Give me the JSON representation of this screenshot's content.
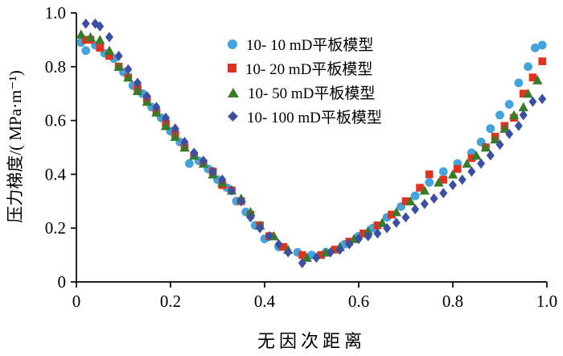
{
  "figure": {
    "background": "#ffffff",
    "axis_color": "#000000"
  },
  "chart_data": {
    "type": "scatter",
    "title": "",
    "xlabel": "无因次距离",
    "ylabel": "压力梯度/( MPa·m⁻¹)",
    "xlim": [
      0,
      1.0
    ],
    "ylim": [
      0,
      1.0
    ],
    "grid": false,
    "legend_position": "inside upper center",
    "xticks": {
      "values": [
        0,
        0.2,
        0.4,
        0.6,
        0.8,
        1.0
      ],
      "labels": [
        "0",
        "0.2",
        "0.4",
        "0.6",
        "0.8",
        "1.0"
      ]
    },
    "yticks": {
      "values": [
        0,
        0.2,
        0.4,
        0.6,
        0.8,
        1.0
      ],
      "labels": [
        "0",
        "0.2",
        "0.4",
        "0.6",
        "0.8",
        "1.0"
      ]
    },
    "series": [
      {
        "name": "10- 10 mD平板模型",
        "marker": "circle",
        "color": "#45a3dc",
        "points": [
          [
            0.01,
            0.89
          ],
          [
            0.02,
            0.86
          ],
          [
            0.04,
            0.88
          ],
          [
            0.06,
            0.85
          ],
          [
            0.08,
            0.83
          ],
          [
            0.1,
            0.78
          ],
          [
            0.12,
            0.73
          ],
          [
            0.14,
            0.7
          ],
          [
            0.16,
            0.65
          ],
          [
            0.18,
            0.61
          ],
          [
            0.2,
            0.56
          ],
          [
            0.22,
            0.52
          ],
          [
            0.24,
            0.44
          ],
          [
            0.26,
            0.45
          ],
          [
            0.28,
            0.42
          ],
          [
            0.3,
            0.38
          ],
          [
            0.32,
            0.35
          ],
          [
            0.34,
            0.3
          ],
          [
            0.36,
            0.26
          ],
          [
            0.38,
            0.21
          ],
          [
            0.4,
            0.16
          ],
          [
            0.43,
            0.13
          ],
          [
            0.47,
            0.11
          ],
          [
            0.5,
            0.1
          ],
          [
            0.53,
            0.11
          ],
          [
            0.57,
            0.14
          ],
          [
            0.6,
            0.17
          ],
          [
            0.63,
            0.2
          ],
          [
            0.66,
            0.24
          ],
          [
            0.69,
            0.28
          ],
          [
            0.72,
            0.32
          ],
          [
            0.75,
            0.37
          ],
          [
            0.78,
            0.41
          ],
          [
            0.81,
            0.44
          ],
          [
            0.84,
            0.48
          ],
          [
            0.86,
            0.52
          ],
          [
            0.88,
            0.57
          ],
          [
            0.9,
            0.62
          ],
          [
            0.92,
            0.66
          ],
          [
            0.94,
            0.74
          ],
          [
            0.96,
            0.8
          ],
          [
            0.975,
            0.87
          ],
          [
            0.99,
            0.88
          ]
        ]
      },
      {
        "name": "10- 20 mD平板模型",
        "marker": "square",
        "color": "#e0321f",
        "points": [
          [
            0.02,
            0.9
          ],
          [
            0.03,
            0.9
          ],
          [
            0.05,
            0.87
          ],
          [
            0.07,
            0.84
          ],
          [
            0.09,
            0.8
          ],
          [
            0.11,
            0.76
          ],
          [
            0.13,
            0.72
          ],
          [
            0.15,
            0.68
          ],
          [
            0.17,
            0.63
          ],
          [
            0.19,
            0.59
          ],
          [
            0.21,
            0.55
          ],
          [
            0.23,
            0.5
          ],
          [
            0.25,
            0.47
          ],
          [
            0.27,
            0.44
          ],
          [
            0.29,
            0.41
          ],
          [
            0.31,
            0.36
          ],
          [
            0.33,
            0.34
          ],
          [
            0.35,
            0.3
          ],
          [
            0.37,
            0.25
          ],
          [
            0.39,
            0.21
          ],
          [
            0.41,
            0.17
          ],
          [
            0.44,
            0.13
          ],
          [
            0.48,
            0.1
          ],
          [
            0.52,
            0.1
          ],
          [
            0.55,
            0.12
          ],
          [
            0.58,
            0.15
          ],
          [
            0.61,
            0.18
          ],
          [
            0.64,
            0.21
          ],
          [
            0.67,
            0.25
          ],
          [
            0.7,
            0.3
          ],
          [
            0.73,
            0.35
          ],
          [
            0.75,
            0.4
          ],
          [
            0.78,
            0.38
          ],
          [
            0.81,
            0.42
          ],
          [
            0.84,
            0.46
          ],
          [
            0.87,
            0.5
          ],
          [
            0.89,
            0.54
          ],
          [
            0.91,
            0.58
          ],
          [
            0.93,
            0.61
          ],
          [
            0.95,
            0.7
          ],
          [
            0.97,
            0.76
          ],
          [
            0.99,
            0.82
          ]
        ]
      },
      {
        "name": "10- 50 mD平板模型",
        "marker": "triangle",
        "color": "#3a7a2b",
        "points": [
          [
            0.01,
            0.92
          ],
          [
            0.03,
            0.91
          ],
          [
            0.05,
            0.9
          ],
          [
            0.07,
            0.86
          ],
          [
            0.09,
            0.8
          ],
          [
            0.11,
            0.76
          ],
          [
            0.13,
            0.71
          ],
          [
            0.15,
            0.67
          ],
          [
            0.17,
            0.63
          ],
          [
            0.19,
            0.58
          ],
          [
            0.21,
            0.54
          ],
          [
            0.23,
            0.5
          ],
          [
            0.25,
            0.47
          ],
          [
            0.27,
            0.44
          ],
          [
            0.29,
            0.4
          ],
          [
            0.31,
            0.37
          ],
          [
            0.33,
            0.34
          ],
          [
            0.35,
            0.31
          ],
          [
            0.37,
            0.26
          ],
          [
            0.39,
            0.21
          ],
          [
            0.42,
            0.17
          ],
          [
            0.45,
            0.12
          ],
          [
            0.49,
            0.09
          ],
          [
            0.53,
            0.11
          ],
          [
            0.56,
            0.13
          ],
          [
            0.59,
            0.16
          ],
          [
            0.62,
            0.19
          ],
          [
            0.65,
            0.22
          ],
          [
            0.68,
            0.26
          ],
          [
            0.71,
            0.3
          ],
          [
            0.74,
            0.34
          ],
          [
            0.77,
            0.37
          ],
          [
            0.8,
            0.4
          ],
          [
            0.83,
            0.44
          ],
          [
            0.85,
            0.47
          ],
          [
            0.87,
            0.5
          ],
          [
            0.89,
            0.53
          ],
          [
            0.91,
            0.57
          ],
          [
            0.93,
            0.62
          ],
          [
            0.95,
            0.65
          ],
          [
            0.96,
            0.7
          ],
          [
            0.98,
            0.75
          ]
        ]
      },
      {
        "name": "10- 100 mD平板模型",
        "marker": "diamond",
        "color": "#3c4fa0",
        "points": [
          [
            0.02,
            0.96
          ],
          [
            0.04,
            0.96
          ],
          [
            0.05,
            0.95
          ],
          [
            0.07,
            0.91
          ],
          [
            0.09,
            0.84
          ],
          [
            0.11,
            0.79
          ],
          [
            0.13,
            0.74
          ],
          [
            0.15,
            0.69
          ],
          [
            0.17,
            0.65
          ],
          [
            0.19,
            0.61
          ],
          [
            0.21,
            0.57
          ],
          [
            0.23,
            0.52
          ],
          [
            0.25,
            0.48
          ],
          [
            0.27,
            0.45
          ],
          [
            0.29,
            0.41
          ],
          [
            0.31,
            0.38
          ],
          [
            0.33,
            0.34
          ],
          [
            0.35,
            0.3
          ],
          [
            0.37,
            0.24
          ],
          [
            0.39,
            0.2
          ],
          [
            0.41,
            0.17
          ],
          [
            0.43,
            0.14
          ],
          [
            0.45,
            0.11
          ],
          [
            0.48,
            0.07
          ],
          [
            0.51,
            0.09
          ],
          [
            0.54,
            0.11
          ],
          [
            0.56,
            0.12
          ],
          [
            0.58,
            0.14
          ],
          [
            0.6,
            0.16
          ],
          [
            0.62,
            0.17
          ],
          [
            0.64,
            0.18
          ],
          [
            0.66,
            0.2
          ],
          [
            0.68,
            0.22
          ],
          [
            0.7,
            0.24
          ],
          [
            0.72,
            0.27
          ],
          [
            0.74,
            0.29
          ],
          [
            0.76,
            0.31
          ],
          [
            0.78,
            0.33
          ],
          [
            0.8,
            0.36
          ],
          [
            0.82,
            0.38
          ],
          [
            0.84,
            0.41
          ],
          [
            0.86,
            0.44
          ],
          [
            0.88,
            0.47
          ],
          [
            0.9,
            0.51
          ],
          [
            0.92,
            0.55
          ],
          [
            0.94,
            0.58
          ],
          [
            0.95,
            0.62
          ],
          [
            0.97,
            0.67
          ],
          [
            0.99,
            0.68
          ]
        ]
      }
    ]
  }
}
